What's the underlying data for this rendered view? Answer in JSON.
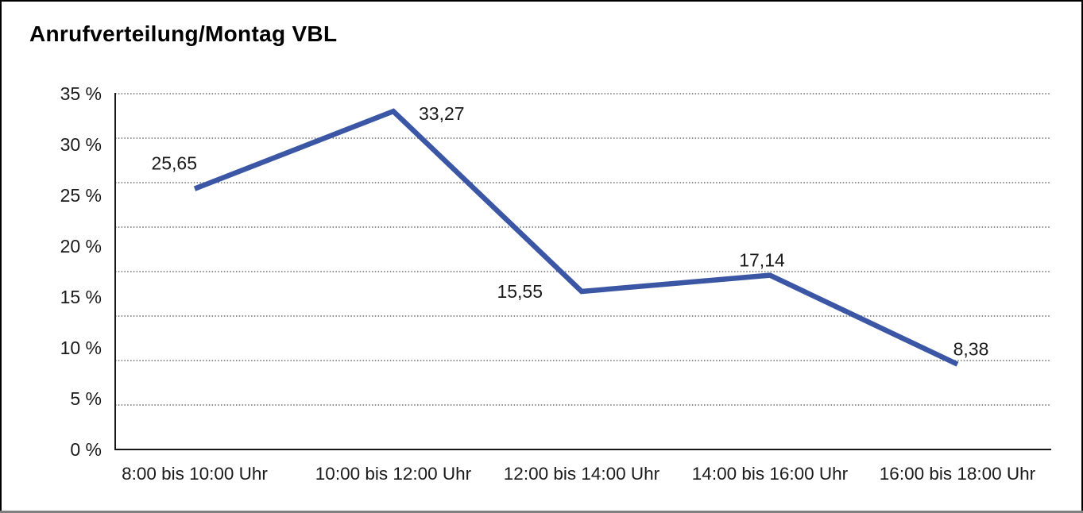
{
  "window": {
    "background_color": "#ffffff",
    "border_color": "#000000",
    "border_bottom_color": "#7f7f7f"
  },
  "chart_data": {
    "type": "line",
    "title": "Anrufverteilung/Montag VBL",
    "categories": [
      "8:00 bis 10:00 Uhr",
      "10:00 bis 12:00 Uhr",
      "12:00 bis 14:00 Uhr",
      "14:00 bis 16:00 Uhr",
      "16:00 bis 18:00 Uhr"
    ],
    "series": [
      {
        "values": [
          25.65,
          33.27,
          15.55,
          17.14,
          8.38
        ],
        "point_labels": [
          "25,65",
          "33,27",
          "15,55",
          "17,14",
          "8,38"
        ],
        "color": "#3a56a5"
      }
    ],
    "ylim": [
      0,
      35
    ],
    "y_tick_labels": [
      "35 %",
      "30 %",
      "25 %",
      "20 %",
      "15 %",
      "10 %",
      "5 %",
      "0 %"
    ],
    "xlabel": "",
    "ylabel": "",
    "grid": "horizontal-dotted",
    "gridline_count": 8,
    "legend_position": "none"
  }
}
